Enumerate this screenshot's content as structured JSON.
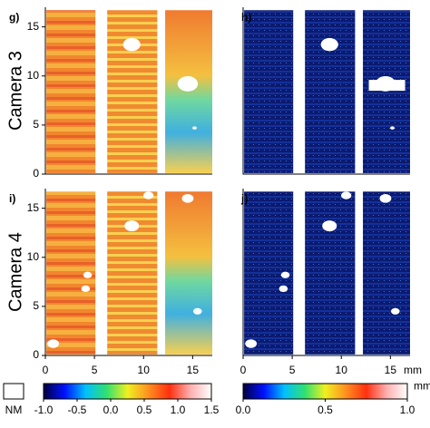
{
  "chart_data": [
    {
      "type": "image",
      "label": "g)",
      "row_label": "Camera 3",
      "ylim": [
        0,
        17
      ],
      "yticks": [
        0,
        5,
        10,
        15
      ],
      "xlim": [
        0,
        17
      ]
    },
    {
      "type": "image",
      "label": "h)",
      "ylim": [
        0,
        17
      ],
      "xlim": [
        0,
        17
      ]
    },
    {
      "type": "image",
      "label": "i)",
      "row_label": "Camera 4",
      "ylim": [
        0,
        17
      ],
      "yticks": [
        0,
        5,
        10,
        15
      ],
      "xlim": [
        0,
        17
      ],
      "xticks": [
        0,
        5,
        10,
        15
      ]
    },
    {
      "type": "image",
      "label": "j)",
      "ylim": [
        0,
        17
      ],
      "xlim": [
        0,
        17
      ],
      "xticks": [
        0,
        5,
        10,
        15
      ],
      "x_label": "mm"
    },
    {
      "type": "colorbar",
      "nm_label": "NM",
      "lim": [
        -1,
        1.5
      ],
      "ticks": [
        {
          "value": -1,
          "label": "-1.0"
        },
        {
          "value": -0.5,
          "label": "-0.5"
        },
        {
          "value": 0,
          "label": "0.0"
        },
        0.5,
        {
          "value": 1,
          "label": "1.0"
        },
        1.5
      ],
      "colors": [
        "#000040",
        "#0010ff",
        "#00c0ff",
        "#30e070",
        "#f0f020",
        "#ff9020",
        "#ff3010",
        "#ffb0b0",
        "#ffffff"
      ]
    },
    {
      "type": "colorbar",
      "lim": [
        0,
        1
      ],
      "ticks": [
        {
          "value": 0,
          "label": "0.0"
        },
        0.5,
        {
          "value": 1,
          "label": "1.0"
        }
      ],
      "label": "mm",
      "colors": [
        "#000040",
        "#0010ff",
        "#00c0ff",
        "#30e070",
        "#f0f020",
        "#ff9020",
        "#ff3010",
        "#ffb0b0",
        "#ffffff"
      ]
    }
  ]
}
